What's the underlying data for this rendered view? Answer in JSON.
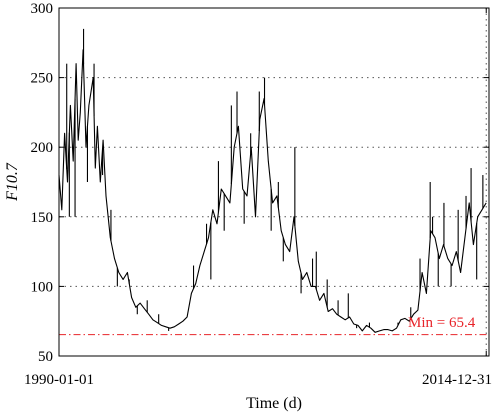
{
  "chart_data": {
    "type": "line",
    "xlabel": "Time (d)",
    "ylabel": "F10.7",
    "x_tick_labels": [
      "1990-01-01",
      "2014-12-31"
    ],
    "x_range": [
      "1990-01-01",
      "2015-02-28"
    ],
    "ylim": [
      50,
      300
    ],
    "yticks": [
      50,
      100,
      150,
      200,
      250,
      300
    ],
    "grid": true,
    "series": [
      {
        "color": "#000000",
        "points": [
          [
            "1990-01-01",
            180
          ],
          [
            "1990-03-01",
            155
          ],
          [
            "1990-05-01",
            210
          ],
          [
            "1990-07-01",
            175
          ],
          [
            "1990-09-01",
            230
          ],
          [
            "1990-11-01",
            190
          ],
          [
            "1991-01-01",
            260
          ],
          [
            "1991-02-15",
            205
          ],
          [
            "1991-04-01",
            225
          ],
          [
            "1991-06-01",
            270
          ],
          [
            "1991-08-01",
            200
          ],
          [
            "1991-10-01",
            230
          ],
          [
            "1992-01-01",
            250
          ],
          [
            "1992-02-15",
            185
          ],
          [
            "1992-04-01",
            215
          ],
          [
            "1992-06-01",
            175
          ],
          [
            "1992-08-01",
            205
          ],
          [
            "1992-10-01",
            165
          ],
          [
            "1993-01-01",
            135
          ],
          [
            "1993-04-01",
            120
          ],
          [
            "1993-07-01",
            110
          ],
          [
            "1993-10-01",
            105
          ],
          [
            "1994-01-01",
            110
          ],
          [
            "1994-04-01",
            92
          ],
          [
            "1994-07-01",
            85
          ],
          [
            "1994-10-01",
            88
          ],
          [
            "1995-01-01",
            84
          ],
          [
            "1995-04-01",
            80
          ],
          [
            "1995-07-01",
            76
          ],
          [
            "1995-10-01",
            74
          ],
          [
            "1996-01-01",
            72
          ],
          [
            "1996-04-01",
            71
          ],
          [
            "1996-07-01",
            70
          ],
          [
            "1996-10-01",
            71
          ],
          [
            "1997-01-01",
            73
          ],
          [
            "1997-04-01",
            75
          ],
          [
            "1997-07-01",
            78
          ],
          [
            "1997-10-01",
            95
          ],
          [
            "1998-01-01",
            102
          ],
          [
            "1998-04-01",
            115
          ],
          [
            "1998-07-01",
            125
          ],
          [
            "1998-10-01",
            135
          ],
          [
            "1999-01-01",
            155
          ],
          [
            "1999-04-01",
            145
          ],
          [
            "1999-07-01",
            170
          ],
          [
            "1999-10-01",
            165
          ],
          [
            "2000-01-01",
            160
          ],
          [
            "2000-04-01",
            200
          ],
          [
            "2000-07-01",
            215
          ],
          [
            "2000-10-01",
            170
          ],
          [
            "2001-01-01",
            165
          ],
          [
            "2001-04-01",
            200
          ],
          [
            "2001-07-01",
            150
          ],
          [
            "2001-10-01",
            220
          ],
          [
            "2002-01-01",
            235
          ],
          [
            "2002-04-01",
            190
          ],
          [
            "2002-07-01",
            160
          ],
          [
            "2002-10-01",
            165
          ],
          [
            "2003-01-01",
            140
          ],
          [
            "2003-04-01",
            130
          ],
          [
            "2003-07-01",
            125
          ],
          [
            "2003-10-01",
            150
          ],
          [
            "2004-01-01",
            118
          ],
          [
            "2004-04-01",
            105
          ],
          [
            "2004-07-01",
            110
          ],
          [
            "2004-10-01",
            100
          ],
          [
            "2005-01-01",
            100
          ],
          [
            "2005-04-01",
            90
          ],
          [
            "2005-07-01",
            95
          ],
          [
            "2005-10-01",
            82
          ],
          [
            "2006-01-01",
            84
          ],
          [
            "2006-04-01",
            80
          ],
          [
            "2006-07-01",
            78
          ],
          [
            "2006-10-01",
            76
          ],
          [
            "2007-01-01",
            78
          ],
          [
            "2007-04-01",
            73
          ],
          [
            "2007-07-01",
            72
          ],
          [
            "2007-10-01",
            68
          ],
          [
            "2008-01-01",
            72
          ],
          [
            "2008-04-01",
            70
          ],
          [
            "2008-07-01",
            67
          ],
          [
            "2008-10-01",
            68
          ],
          [
            "2009-01-01",
            69
          ],
          [
            "2009-04-01",
            69
          ],
          [
            "2009-07-01",
            68
          ],
          [
            "2009-10-01",
            70
          ],
          [
            "2010-01-01",
            76
          ],
          [
            "2010-04-01",
            77
          ],
          [
            "2010-07-01",
            75
          ],
          [
            "2010-10-01",
            80
          ],
          [
            "2011-01-01",
            83
          ],
          [
            "2011-04-01",
            110
          ],
          [
            "2011-07-01",
            95
          ],
          [
            "2011-10-01",
            140
          ],
          [
            "2012-01-01",
            135
          ],
          [
            "2012-04-01",
            120
          ],
          [
            "2012-07-01",
            130
          ],
          [
            "2012-10-01",
            120
          ],
          [
            "2013-01-01",
            115
          ],
          [
            "2013-04-01",
            125
          ],
          [
            "2013-07-01",
            110
          ],
          [
            "2013-10-01",
            135
          ],
          [
            "2014-01-01",
            160
          ],
          [
            "2014-04-01",
            130
          ],
          [
            "2014-07-01",
            150
          ],
          [
            "2014-10-01",
            155
          ],
          [
            "2014-12-31",
            160
          ]
        ]
      }
    ],
    "spikes": [
      [
        "1990-06-15",
        260
      ],
      [
        "1990-08-10",
        150
      ],
      [
        "1990-12-10",
        150
      ],
      [
        "1991-06-10",
        285
      ],
      [
        "1991-09-01",
        175
      ],
      [
        "1992-01-20",
        260
      ],
      [
        "1992-07-20",
        180
      ],
      [
        "1993-01-15",
        155
      ],
      [
        "1993-06-01",
        100
      ],
      [
        "1994-02-10",
        105
      ],
      [
        "1994-08-01",
        80
      ],
      [
        "1995-03-01",
        90
      ],
      [
        "1995-11-01",
        80
      ],
      [
        "1996-06-01",
        68
      ],
      [
        "1997-11-15",
        115
      ],
      [
        "1998-08-20",
        145
      ],
      [
        "1998-11-20",
        105
      ],
      [
        "1999-05-01",
        190
      ],
      [
        "1999-09-01",
        140
      ],
      [
        "2000-02-01",
        230
      ],
      [
        "2000-06-01",
        240
      ],
      [
        "2000-11-01",
        145
      ],
      [
        "2001-03-20",
        210
      ],
      [
        "2001-09-20",
        240
      ],
      [
        "2002-01-10",
        250
      ],
      [
        "2002-06-01",
        140
      ],
      [
        "2002-11-01",
        175
      ],
      [
        "2003-02-15",
        118
      ],
      [
        "2003-10-20",
        200
      ],
      [
        "2004-03-01",
        95
      ],
      [
        "2004-11-01",
        120
      ],
      [
        "2005-01-20",
        125
      ],
      [
        "2005-09-10",
        105
      ],
      [
        "2006-05-01",
        90
      ],
      [
        "2006-12-05",
        95
      ],
      [
        "2007-06-01",
        70
      ],
      [
        "2008-03-01",
        74
      ],
      [
        "2009-11-01",
        74
      ],
      [
        "2010-08-01",
        85
      ],
      [
        "2011-02-15",
        120
      ],
      [
        "2011-09-20",
        175
      ],
      [
        "2011-11-10",
        150
      ],
      [
        "2012-03-10",
        100
      ],
      [
        "2012-07-10",
        160
      ],
      [
        "2012-12-10",
        100
      ],
      [
        "2013-05-10",
        155
      ],
      [
        "2013-10-25",
        165
      ],
      [
        "2014-02-10",
        185
      ],
      [
        "2014-06-10",
        105
      ],
      [
        "2014-10-20",
        180
      ]
    ],
    "annotation": {
      "text": "Min = 65.4",
      "value": 65.4,
      "color": "#e8242a"
    }
  }
}
